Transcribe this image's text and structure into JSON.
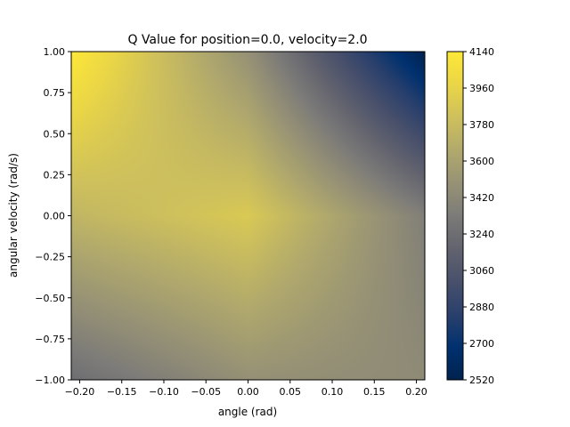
{
  "chart_data": {
    "type": "heatmap",
    "title": "Q Value for position=0.0, velocity=2.0",
    "xlabel": "angle (rad)",
    "ylabel": "angular velocity (rad/s)",
    "xlim": [
      -0.21,
      0.21
    ],
    "ylim": [
      -1.0,
      1.0
    ],
    "x_ticks": [
      -0.2,
      -0.15,
      -0.1,
      -0.05,
      0.0,
      0.05,
      0.1,
      0.15,
      0.2
    ],
    "x_tick_labels": [
      "−0.20",
      "−0.15",
      "−0.10",
      "−0.05",
      "0.00",
      "0.05",
      "0.10",
      "0.15",
      "0.20"
    ],
    "y_ticks": [
      -1.0,
      -0.75,
      -0.5,
      -0.25,
      0.0,
      0.25,
      0.5,
      0.75,
      1.0
    ],
    "y_tick_labels": [
      "−1.00",
      "−0.75",
      "−0.50",
      "−0.25",
      "0.00",
      "0.25",
      "0.50",
      "0.75",
      "1.00"
    ],
    "colormap": "cividis",
    "colorbar": {
      "range": [
        2520,
        4140
      ],
      "ticks": [
        2520,
        2700,
        2880,
        3060,
        3240,
        3420,
        3600,
        3780,
        3960,
        4140
      ],
      "tick_labels": [
        "2520",
        "2700",
        "2880",
        "3060",
        "3240",
        "3420",
        "3600",
        "3780",
        "3960",
        "4140"
      ]
    },
    "z_grid": {
      "x": [
        -0.21,
        0.0,
        0.21
      ],
      "y": [
        -1.0,
        0.0,
        1.0
      ],
      "z": [
        [
          3240,
          3480,
          3440
        ],
        [
          3740,
          3880,
          3360
        ],
        [
          4140,
          3480,
          2520
        ]
      ]
    },
    "grid": false
  }
}
